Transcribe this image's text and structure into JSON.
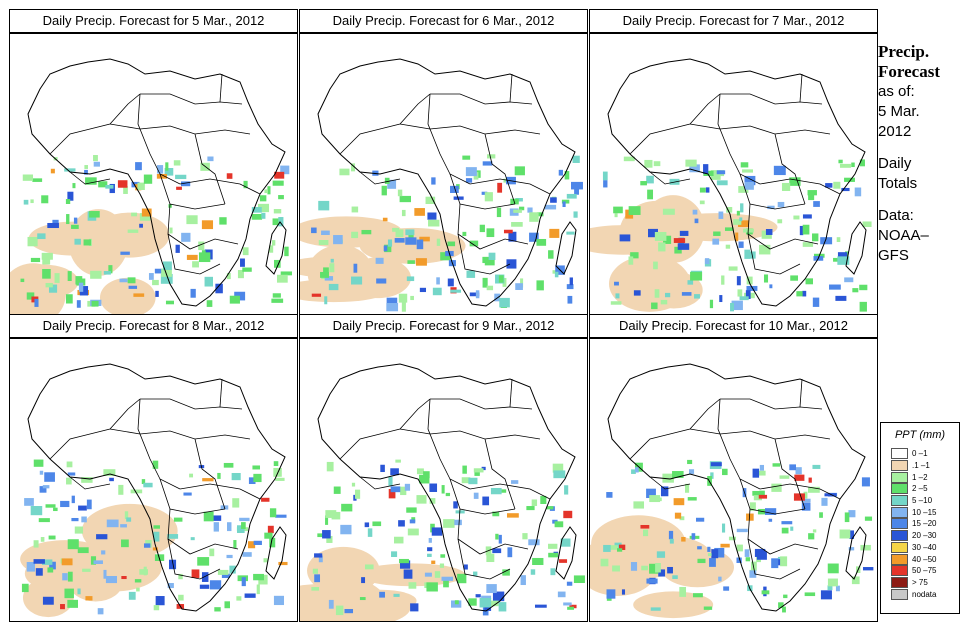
{
  "panels": [
    {
      "title": "Daily Precip. Forecast for  5 Mar., 2012"
    },
    {
      "title": "Daily Precip. Forecast for  6 Mar., 2012"
    },
    {
      "title": "Daily Precip. Forecast for  7 Mar., 2012"
    },
    {
      "title": "Daily Precip. Forecast for  8 Mar., 2012"
    },
    {
      "title": "Daily Precip. Forecast for  9 Mar., 2012"
    },
    {
      "title": "Daily Precip. Forecast for  10 Mar., 2012"
    }
  ],
  "side": {
    "heading1": "Precip.",
    "heading2": "Forecast",
    "asof": "as of:",
    "date1": "5 Mar.",
    "date2": "2012",
    "totals1": "Daily",
    "totals2": "Totals",
    "data1": "Data:",
    "data2": "NOAA–",
    "data3": "GFS"
  },
  "legend": {
    "title": "PPT (mm)",
    "items": [
      {
        "label": "0 –1",
        "color": "#ffffff"
      },
      {
        "label": ".1 –1",
        "color": "#f2d6b3"
      },
      {
        "label": "1 –2",
        "color": "#a7f0a0"
      },
      {
        "label": "2 –5",
        "color": "#5fe06a"
      },
      {
        "label": "5 –10",
        "color": "#74d6c8"
      },
      {
        "label": "10 –15",
        "color": "#82b4f0"
      },
      {
        "label": "15 –20",
        "color": "#4d86e8"
      },
      {
        "label": "20 –30",
        "color": "#2a55d6"
      },
      {
        "label": "30 –40",
        "color": "#f5d547"
      },
      {
        "label": "40 –50",
        "color": "#f29b2a"
      },
      {
        "label": "50 –75",
        "color": "#e4342a"
      },
      {
        "label": "> 75",
        "color": "#8c1b14"
      },
      {
        "label": "nodata",
        "color": "#c8c8c8"
      }
    ]
  }
}
